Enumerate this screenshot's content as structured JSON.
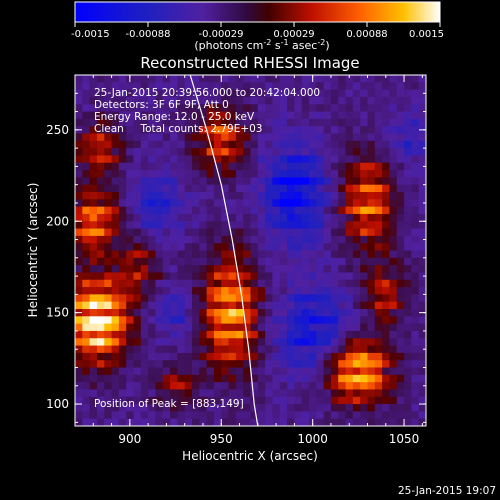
{
  "chart_data": {
    "type": "heatmap",
    "title": "Reconstructed RHESSI Image",
    "xlabel": "Heliocentric X (arcsec)",
    "ylabel": "Heliocentric Y (arcsec)",
    "xlim": [
      870,
      1062
    ],
    "ylim": [
      88,
      280
    ],
    "x_ticks": [
      900,
      950,
      1000,
      1050
    ],
    "y_ticks": [
      100,
      150,
      200,
      250
    ],
    "colorbar": {
      "range": [
        -0.0015,
        0.0015
      ],
      "tick_labels": [
        "-0.0015",
        "-0.00088",
        "-0.00029",
        "0.00029",
        "0.00088",
        "0.0015"
      ],
      "unit_main": "(photons cm",
      "unit_exp1": "-2",
      "unit_mid": " s",
      "unit_exp2": "-1",
      "unit_end": " asec",
      "unit_exp3": "-2",
      "unit_close": ")"
    },
    "annotations": {
      "line1": "25-Jan-2015 20:39:56.000 to 20:42:04.000",
      "line2": "Detectors: 3F 6F 9F, Att 0",
      "line3": "Energy Range: 12.0 - 25.0 keV",
      "line4": "Clean     Total counts: 2.79E+03",
      "peak": "Position of Peak = [883,149]"
    },
    "limb_curve": [
      [
        933,
        280
      ],
      [
        942,
        250
      ],
      [
        950,
        220
      ],
      [
        956,
        190
      ],
      [
        961,
        160
      ],
      [
        965,
        130
      ],
      [
        968,
        100
      ],
      [
        970,
        88
      ]
    ],
    "blobs": [
      {
        "x": 882,
        "y": 146,
        "amp": 1.35,
        "sx": 12,
        "sy": 16
      },
      {
        "x": 880,
        "y": 200,
        "amp": 0.85,
        "sx": 10,
        "sy": 12
      },
      {
        "x": 883,
        "y": 240,
        "amp": 0.6,
        "sx": 9,
        "sy": 10
      },
      {
        "x": 955,
        "y": 150,
        "amp": 1.0,
        "sx": 11,
        "sy": 22
      },
      {
        "x": 950,
        "y": 245,
        "amp": 0.75,
        "sx": 10,
        "sy": 12
      },
      {
        "x": 1030,
        "y": 210,
        "amp": 0.8,
        "sx": 10,
        "sy": 18
      },
      {
        "x": 1040,
        "y": 160,
        "amp": 0.55,
        "sx": 8,
        "sy": 12
      },
      {
        "x": 1025,
        "y": 118,
        "amp": 1.15,
        "sx": 12,
        "sy": 12
      },
      {
        "x": 905,
        "y": 175,
        "amp": 0.45,
        "sx": 8,
        "sy": 10
      },
      {
        "x": 925,
        "y": 110,
        "amp": 0.45,
        "sx": 8,
        "sy": 8
      },
      {
        "x": 990,
        "y": 215,
        "amp": -0.75,
        "sx": 12,
        "sy": 18
      },
      {
        "x": 1000,
        "y": 140,
        "amp": -0.6,
        "sx": 14,
        "sy": 16
      },
      {
        "x": 915,
        "y": 210,
        "amp": -0.4,
        "sx": 10,
        "sy": 12
      },
      {
        "x": 925,
        "y": 150,
        "amp": -0.35,
        "sx": 8,
        "sy": 10
      },
      {
        "x": 1055,
        "y": 245,
        "amp": -0.3,
        "sx": 10,
        "sy": 10
      }
    ],
    "background": -0.22
  },
  "footer": {
    "date": "25-Jan-2015 19:07"
  }
}
